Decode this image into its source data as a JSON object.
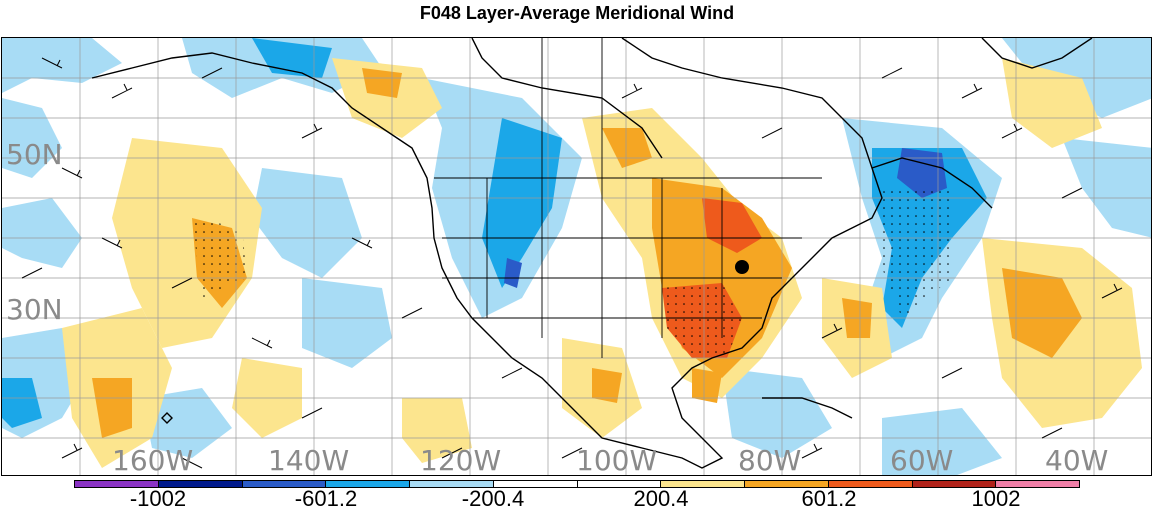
{
  "title": "F048 Layer-Average Meridional Wind",
  "lat_labels": [
    "50N",
    "30N"
  ],
  "lon_labels": [
    "160W",
    "140W",
    "120W",
    "100W",
    "80W",
    "60W",
    "40W"
  ],
  "colorbar": {
    "colors": [
      "#8a33c4",
      "#001a8c",
      "#2a5bc8",
      "#1ba7e8",
      "#a8dcf5",
      "#ffffff",
      "#ffffff",
      "#fce58e",
      "#f5a623",
      "#ee5a1c",
      "#b0221a",
      "#f07fa8"
    ],
    "labels": [
      "-1002",
      "-601.2",
      "-200.4",
      "200.4",
      "601.2",
      "1002"
    ]
  },
  "features": {
    "station_marker": "station-dot-icon",
    "wind_barbs": "wind-barb-icon"
  }
}
